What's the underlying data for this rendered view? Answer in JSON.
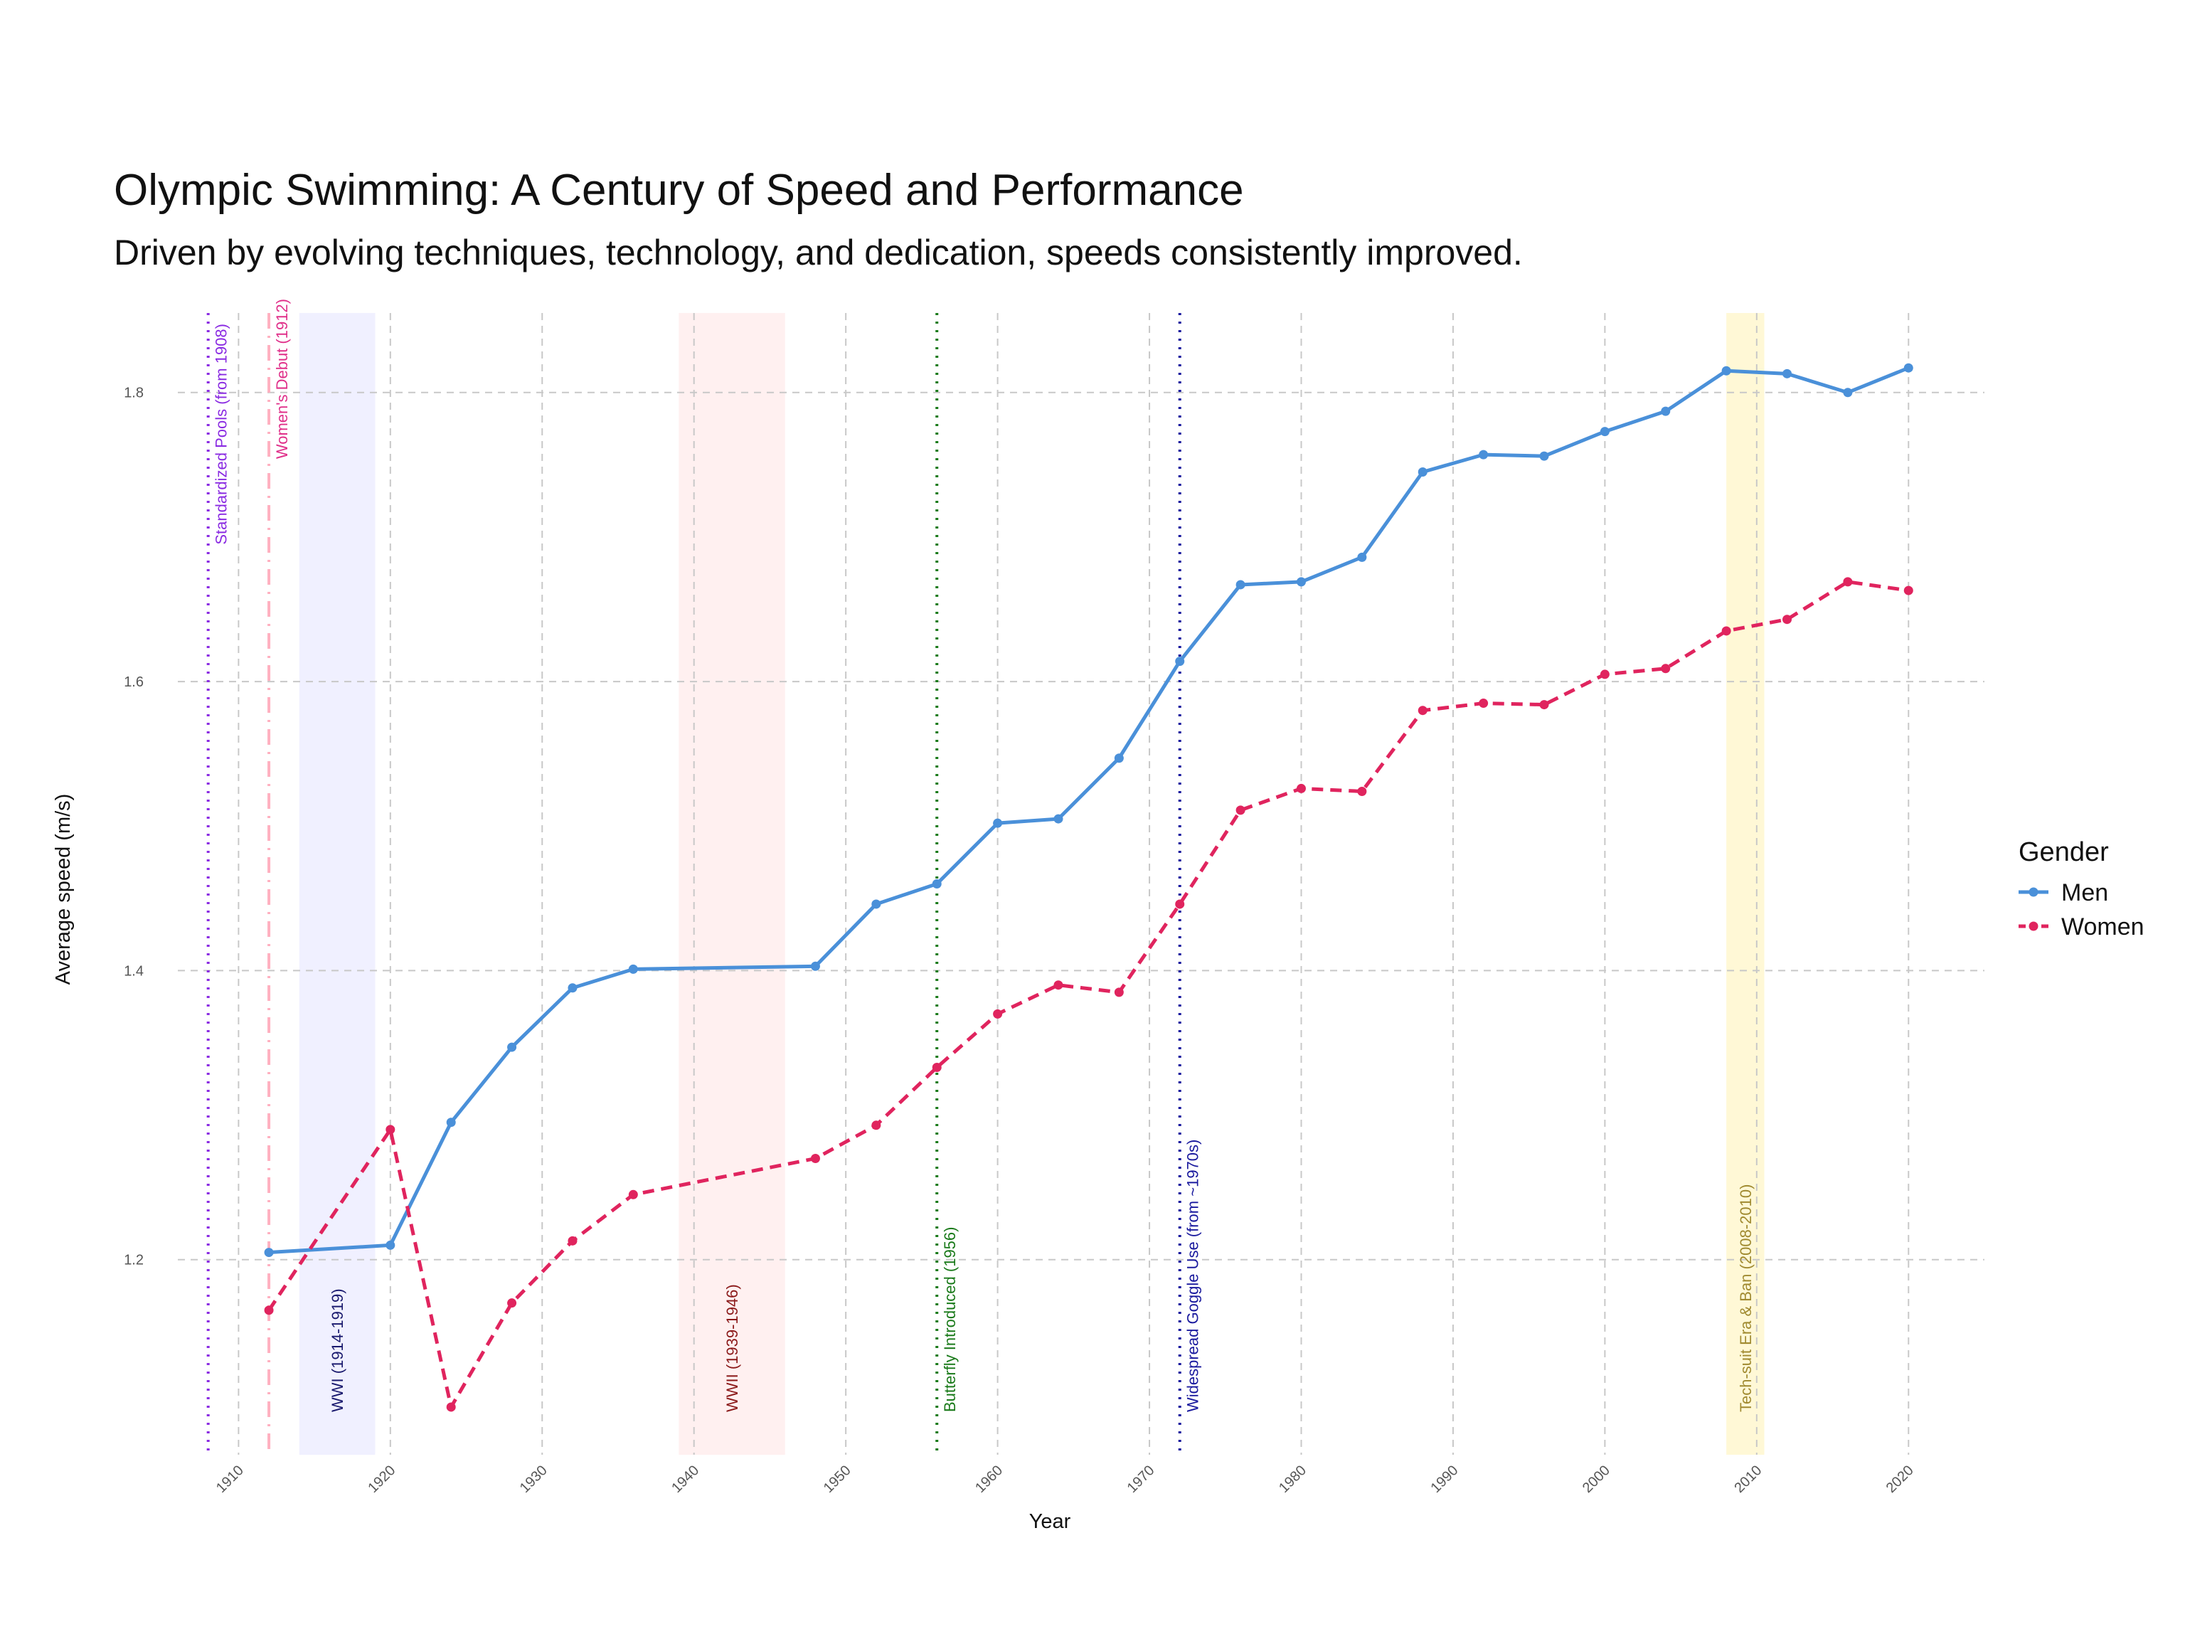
{
  "chart_data": {
    "type": "line",
    "title": "Olympic Swimming: A Century of Speed and Performance",
    "subtitle": "Driven by evolving techniques, technology, and dedication, speeds consistently improved.",
    "xlabel": "Year",
    "ylabel": "Average speed (m/s)",
    "xlim": [
      1906,
      2025
    ],
    "ylim": [
      1.065,
      1.855
    ],
    "x_ticks": [
      1910,
      1920,
      1930,
      1940,
      1950,
      1960,
      1970,
      1980,
      1990,
      2000,
      2010,
      2020
    ],
    "y_ticks": [
      1.2,
      1.4,
      1.6,
      1.8
    ],
    "y_tick_labels": [
      "1.2",
      "1.4",
      "1.6",
      "1.8"
    ],
    "grid": true,
    "legend": {
      "title": "Gender",
      "position": "right"
    },
    "series": [
      {
        "name": "Men",
        "color": "#4A90D9",
        "style": "solid",
        "x": [
          1912,
          1920,
          1924,
          1928,
          1932,
          1936,
          1948,
          1952,
          1956,
          1960,
          1964,
          1968,
          1972,
          1976,
          1980,
          1984,
          1988,
          1992,
          1996,
          2000,
          2004,
          2008,
          2012,
          2016,
          2020
        ],
        "y": [
          1.205,
          1.21,
          1.295,
          1.347,
          1.388,
          1.401,
          1.403,
          1.446,
          1.46,
          1.502,
          1.505,
          1.547,
          1.614,
          1.667,
          1.669,
          1.686,
          1.745,
          1.757,
          1.756,
          1.773,
          1.787,
          1.815,
          1.813,
          1.8,
          1.817
        ]
      },
      {
        "name": "Women",
        "color": "#E0245E",
        "style": "dashed",
        "x": [
          1912,
          1920,
          1924,
          1928,
          1932,
          1936,
          1948,
          1952,
          1956,
          1960,
          1964,
          1968,
          1972,
          1976,
          1980,
          1984,
          1988,
          1992,
          1996,
          2000,
          2004,
          2008,
          2012,
          2016,
          2020
        ],
        "y": [
          1.165,
          1.29,
          1.098,
          1.17,
          1.213,
          1.245,
          1.27,
          1.293,
          1.333,
          1.37,
          1.39,
          1.385,
          1.446,
          1.511,
          1.526,
          1.524,
          1.58,
          1.585,
          1.584,
          1.605,
          1.609,
          1.635,
          1.643,
          1.669,
          1.663
        ]
      }
    ],
    "shaded_periods": [
      {
        "label": "WWI (1914-1919)",
        "start": 1914,
        "end": 1919,
        "color": "#F0F0FF",
        "label_color": "#1A1A6E"
      },
      {
        "label": "WWII (1939-1946)",
        "start": 1939,
        "end": 1946,
        "color": "#FFF0F0",
        "label_color": "#8B1A1A"
      },
      {
        "label": "Tech-suit Era & Ban (2008-2010)",
        "start": 2008,
        "end": 2010.5,
        "color": "#FFF8D6",
        "label_color": "#A08A30"
      }
    ],
    "annotations": [
      {
        "label": "Standardized Pools (from 1908)",
        "x": 1908,
        "color": "#8A2BE2",
        "style": "dotted",
        "label_pos": "top"
      },
      {
        "label": "Women's Debut (1912)",
        "x": 1912,
        "color": "#FFB0C0",
        "label_color": "#E0308A",
        "style": "dashdot",
        "label_pos": "top"
      },
      {
        "label": "Butterfly Introduced (1956)",
        "x": 1956,
        "color": "#1A7A1A",
        "style": "dotted",
        "label_pos": "bottom"
      },
      {
        "label": "Widespread Goggle Use (from ~1970s)",
        "x": 1972,
        "color": "#1A1A9E",
        "style": "dotted",
        "label_pos": "bottom"
      }
    ]
  }
}
